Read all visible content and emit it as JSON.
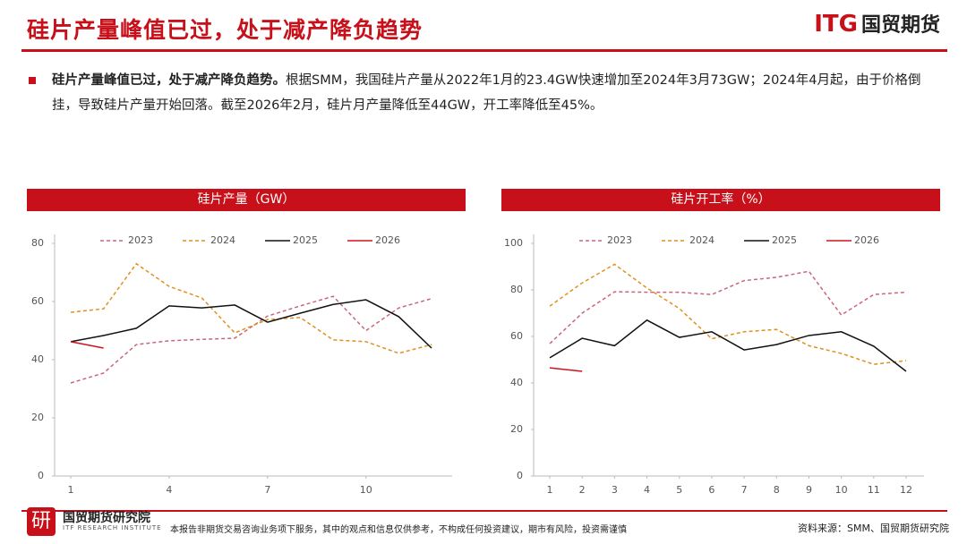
{
  "header": {
    "title": "硅片产量峰值已过，处于减产降负趋势",
    "logo_mark": "ITG",
    "logo_text": "国贸期货"
  },
  "summary": {
    "lead": "硅片产量峰值已过，处于减产降负趋势。",
    "body": "根据SMM，我国硅片产量从2022年1月的23.4GW快速增加至2024年3月73GW；2024年4月起，由于价格倒挂，导致硅片产量开始回落。截至2026年2月，硅片月产量降低至44GW，开工率降低至45%。"
  },
  "chart_data": [
    {
      "type": "line",
      "title": "硅片产量（GW）",
      "x": [
        1,
        2,
        3,
        4,
        5,
        6,
        7,
        8,
        9,
        10,
        11,
        12
      ],
      "xlim": [
        1,
        12
      ],
      "xticks": [
        1,
        4,
        7,
        10
      ],
      "ylim": [
        0,
        80
      ],
      "yticks": [
        0,
        20,
        40,
        60,
        80
      ],
      "grid": false,
      "legend": "top",
      "series": [
        {
          "name": "2023",
          "color": "#c9677a",
          "line_style": "dashed",
          "values": [
            32,
            35.4,
            45.2,
            46.5,
            47,
            47.4,
            55,
            58.5,
            61.8,
            50,
            57.8,
            61
          ]
        },
        {
          "name": "2024",
          "color": "#e0901e",
          "line_style": "dashed",
          "values": [
            56.3,
            57.5,
            73,
            65.2,
            61.2,
            49.2,
            53.8,
            54.5,
            46.8,
            46.2,
            42.2,
            45.2
          ]
        },
        {
          "name": "2025",
          "color": "#111111",
          "line_style": "solid",
          "values": [
            46.2,
            48.3,
            50.8,
            58.5,
            57.8,
            58.8,
            52.9,
            56,
            59,
            60.6,
            54.8,
            44
          ]
        },
        {
          "name": "2026",
          "color": "#d0121b",
          "line_style": "solid",
          "values": [
            46.2,
            44,
            null,
            null,
            null,
            null,
            null,
            null,
            null,
            null,
            null,
            null
          ]
        }
      ]
    },
    {
      "type": "line",
      "title": "硅片开工率（%）",
      "x": [
        1,
        2,
        3,
        4,
        5,
        6,
        7,
        8,
        9,
        10,
        11,
        12
      ],
      "xlim": [
        1,
        12
      ],
      "xticks": [
        1,
        2,
        3,
        4,
        5,
        6,
        7,
        8,
        9,
        10,
        11,
        12
      ],
      "ylim": [
        0,
        100
      ],
      "yticks": [
        0,
        20,
        40,
        60,
        80,
        100
      ],
      "grid": false,
      "legend": "top",
      "series": [
        {
          "name": "2023",
          "color": "#c9677a",
          "line_style": "dashed",
          "values": [
            56.9,
            70,
            79.2,
            79,
            79,
            78,
            84,
            85.4,
            88,
            69.2,
            78,
            79
          ]
        },
        {
          "name": "2024",
          "color": "#e0901e",
          "line_style": "dashed",
          "values": [
            73,
            83,
            91,
            80.8,
            72,
            59,
            62,
            63,
            56,
            52.7,
            48,
            49.6
          ]
        },
        {
          "name": "2025",
          "color": "#111111",
          "line_style": "solid",
          "values": [
            50.8,
            59.2,
            56,
            67,
            59.6,
            62,
            54.2,
            56.5,
            60.4,
            62,
            55.8,
            45
          ]
        },
        {
          "name": "2026",
          "color": "#d0121b",
          "line_style": "solid",
          "values": [
            46.5,
            45,
            null,
            null,
            null,
            null,
            null,
            null,
            null,
            null,
            null,
            null
          ]
        }
      ]
    }
  ],
  "footer": {
    "org": "国贸期货研究院",
    "org_en": "ITF RESEARCH INSTITUTE",
    "logo_char": "研",
    "disclaimer": "本报告非期货交易咨询业务项下服务，其中的观点和信息仅供参考，不构成任何投资建议，期市有风险，投资需谨慎",
    "source": "资料来源：SMM、国贸期货研究院"
  }
}
